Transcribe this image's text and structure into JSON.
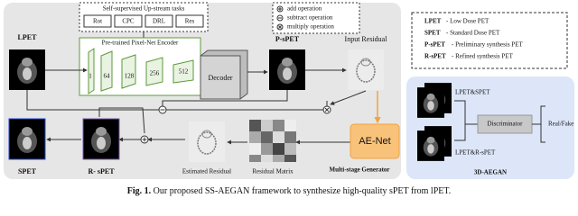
{
  "upstream": {
    "title": "Self-supervised Up-stream tasks",
    "tasks": [
      "Rot",
      "CPC",
      "DRL",
      "Res"
    ]
  },
  "encoder": {
    "title": "Pre-trained Pixel-Net Encoder",
    "channels": [
      1,
      64,
      128,
      256,
      512
    ]
  },
  "decoder": "Decoder",
  "images": {
    "lpet": "LPET",
    "p_spet": "P-sPET",
    "input_residual": "Input Residual",
    "spet": "SPET",
    "r_spet": "R- sPET",
    "estimated_residual": "Estimated Residual",
    "residual_matrix": "Residual Matrix"
  },
  "operations": [
    "add operation",
    "subtract operation",
    "multiply operation"
  ],
  "generator": {
    "net": "AE-Net",
    "title": "Multi-stage Generator"
  },
  "definitions": [
    {
      "term": "LPET",
      "text": "- Low Dose PET"
    },
    {
      "term": "SPET",
      "text": "- Standard Dose PET"
    },
    {
      "term": "P-sPET",
      "text": "- Preliminary synthesis PET"
    },
    {
      "term": "R-sPET",
      "text": "- Refined synthesis PET"
    }
  ],
  "discriminator": {
    "inputs": [
      "LPET&SPET",
      "LPET&R-sPET"
    ],
    "label": "Discriminator",
    "output": "Real/Fake",
    "title": "3D-AEGAN"
  },
  "caption": {
    "label": "Fig. 1.",
    "text": "Our proposed SS-AEGAN framework to synthesize high-quality sPET from lPET."
  }
}
